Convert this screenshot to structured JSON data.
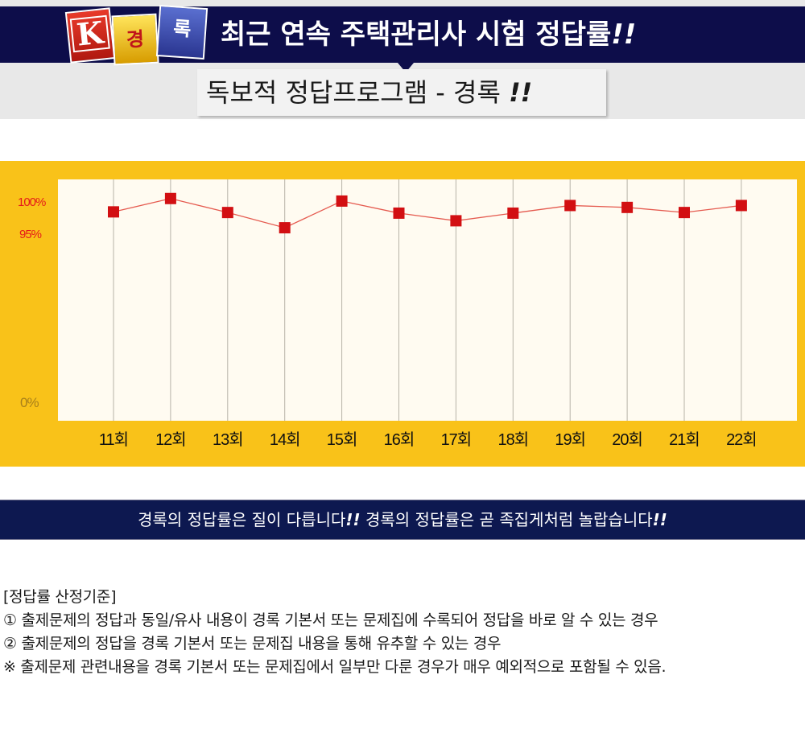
{
  "header": {
    "title": "최근 연속 주택관리사 시험 정답률",
    "title_suffix": "!!",
    "subtitle": "독보적 정답프로그램 - 경록",
    "subtitle_suffix": "!!",
    "logo": {
      "k": "K",
      "gyeong": "경",
      "rok": "록"
    }
  },
  "chart_data": {
    "type": "line",
    "categories": [
      "11회",
      "12회",
      "13회",
      "14회",
      "15회",
      "16회",
      "17회",
      "18회",
      "19회",
      "20회",
      "21회",
      "22회"
    ],
    "values": [
      98.5,
      100.6,
      98.4,
      96.0,
      100.2,
      98.3,
      97.1,
      98.3,
      99.5,
      99.2,
      98.4,
      99.5
    ],
    "ytick_labels": {
      "top": "100%",
      "mid": "95%",
      "bottom": "0%"
    },
    "marker_color": "#d20f12",
    "line_color": "#e55a4f",
    "background": "#fffbf1",
    "frame_color": "#f9c219",
    "grid": "vertical"
  },
  "footer": {
    "text1": "경록의 정답률은 질이 다릅니다",
    "bang1": "!!",
    "text2": " 경록의 정답률은 곧 족집게처럼 놀랍습니다",
    "bang2": "!!"
  },
  "criteria": {
    "heading": "[정답률 산정기준]",
    "line1": "① 출제문제의 정답과 동일/유사 내용이 경록 기본서 또는 문제집에 수록되어 정답을 바로 알 수 있는 경우",
    "line2": "② 출제문제의 정답을 경록 기본서 또는 문제집 내용을 통해 유추할 수 있는 경우",
    "note": "※ 출제문제 관련내용을 경록 기본서 또는 문제집에서 일부만 다룬 경우가 매우 예외적으로 포함될 수 있음."
  }
}
